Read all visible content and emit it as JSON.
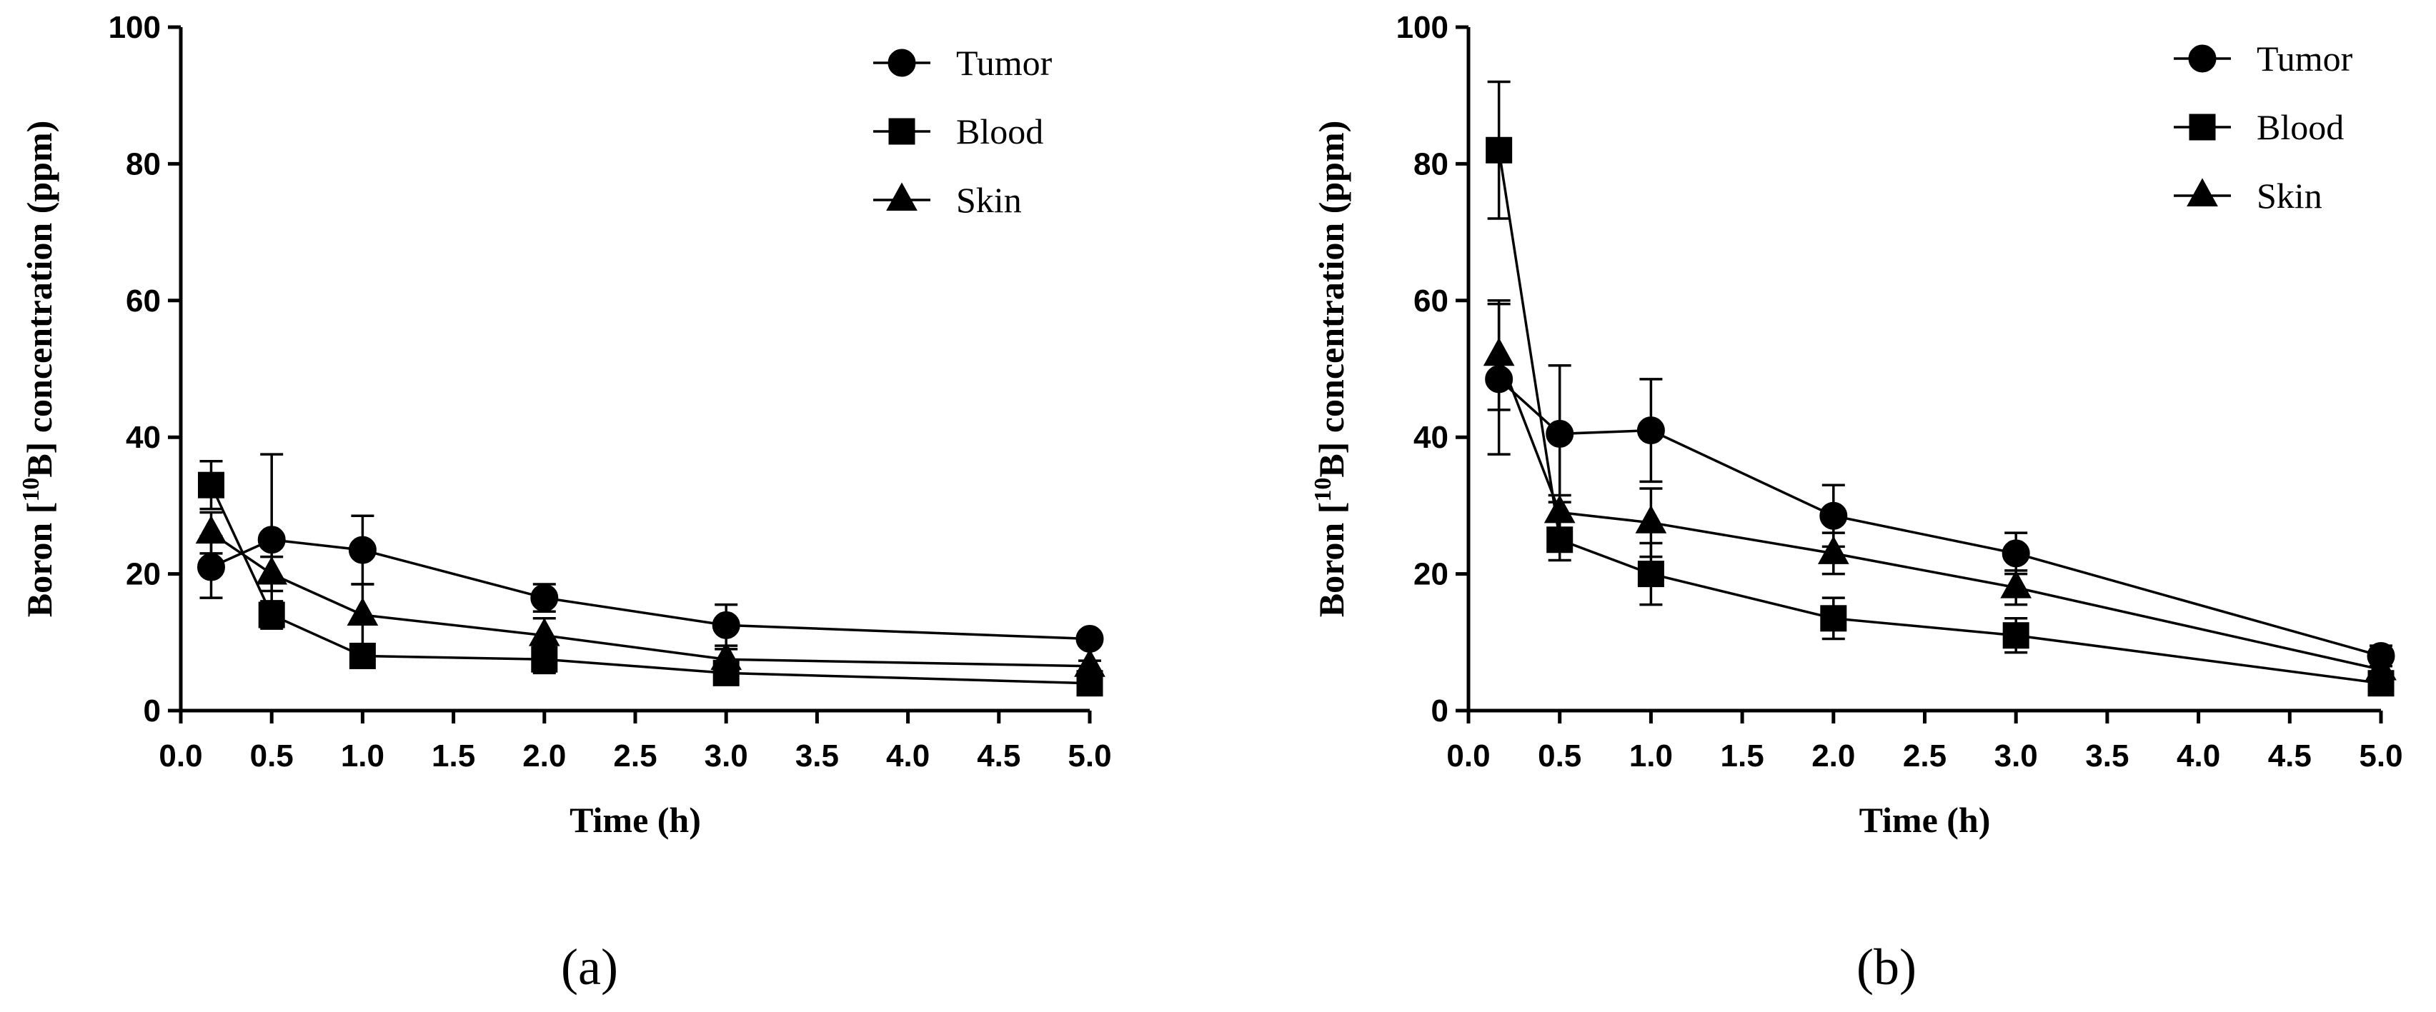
{
  "chart_data": [
    {
      "type": "line",
      "panel_label": "(a)",
      "xlabel": "Time (h)",
      "ylabel_parts": [
        "Boron [",
        "10",
        "B] concentration (ppm)"
      ],
      "xlim": [
        0,
        5
      ],
      "ylim": [
        0,
        100
      ],
      "xticks": [
        0.0,
        0.5,
        1.0,
        1.5,
        2.0,
        2.5,
        3.0,
        3.5,
        4.0,
        4.5,
        5.0
      ],
      "xtick_labels": [
        "0.0",
        "0.5",
        "1.0",
        "1.5",
        "2.0",
        "2.5",
        "3.0",
        "3.5",
        "4.0",
        "4.5",
        "5.0"
      ],
      "yticks": [
        0,
        20,
        40,
        60,
        80,
        100
      ],
      "ytick_labels": [
        "0",
        "20",
        "40",
        "60",
        "80",
        "100"
      ],
      "legend_position": "top-right",
      "series": [
        {
          "name": "Tumor",
          "marker": "circle",
          "x": [
            0.167,
            0.5,
            1.0,
            2.0,
            3.0,
            5.0
          ],
          "y": [
            21,
            25,
            23.5,
            16.5,
            12.5,
            10.5
          ],
          "err": [
            4.5,
            12.5,
            5,
            2,
            3,
            0.8
          ]
        },
        {
          "name": "Blood",
          "marker": "square",
          "x": [
            0.167,
            0.5,
            1.0,
            2.0,
            3.0,
            5.0
          ],
          "y": [
            33,
            14,
            8,
            7.5,
            5.5,
            4
          ],
          "err": [
            3.5,
            2,
            1.5,
            2,
            1,
            1
          ]
        },
        {
          "name": "Skin",
          "marker": "triangle",
          "x": [
            0.167,
            0.5,
            1.0,
            2.0,
            3.0,
            5.0
          ],
          "y": [
            26,
            20,
            14,
            11,
            7.5,
            6.5
          ],
          "err": [
            3,
            2.5,
            4.5,
            2.5,
            1.5,
            0.8
          ]
        }
      ]
    },
    {
      "type": "line",
      "panel_label": "(b)",
      "xlabel": "Time (h)",
      "ylabel_parts": [
        "Boron [",
        "10",
        "B] concentration (ppm)"
      ],
      "xlim": [
        0,
        5
      ],
      "ylim": [
        0,
        100
      ],
      "xticks": [
        0.0,
        0.5,
        1.0,
        1.5,
        2.0,
        2.5,
        3.0,
        3.5,
        4.0,
        4.5,
        5.0
      ],
      "xtick_labels": [
        "0.0",
        "0.5",
        "1.0",
        "1.5",
        "2.0",
        "2.5",
        "3.0",
        "3.5",
        "4.0",
        "4.5",
        "5.0"
      ],
      "yticks": [
        0,
        20,
        40,
        60,
        80,
        100
      ],
      "ytick_labels": [
        "0",
        "20",
        "40",
        "60",
        "80",
        "100"
      ],
      "legend_position": "top-right",
      "series": [
        {
          "name": "Tumor",
          "marker": "circle",
          "x": [
            0.167,
            0.5,
            1.0,
            2.0,
            3.0,
            5.0
          ],
          "y": [
            48.5,
            40.5,
            41,
            28.5,
            23,
            8
          ],
          "err": [
            11,
            10,
            7.5,
            4.5,
            3,
            1.5
          ]
        },
        {
          "name": "Blood",
          "marker": "square",
          "x": [
            0.167,
            0.5,
            1.0,
            2.0,
            3.0,
            5.0
          ],
          "y": [
            82,
            25,
            20,
            13.5,
            11,
            4
          ],
          "err": [
            10,
            3,
            4.5,
            3,
            2.5,
            1
          ]
        },
        {
          "name": "Skin",
          "marker": "triangle",
          "x": [
            0.167,
            0.5,
            1.0,
            2.0,
            3.0,
            5.0
          ],
          "y": [
            52,
            29,
            27.5,
            23,
            18,
            6
          ],
          "err": [
            8,
            2.5,
            5,
            3,
            2.5,
            1
          ]
        }
      ]
    }
  ]
}
